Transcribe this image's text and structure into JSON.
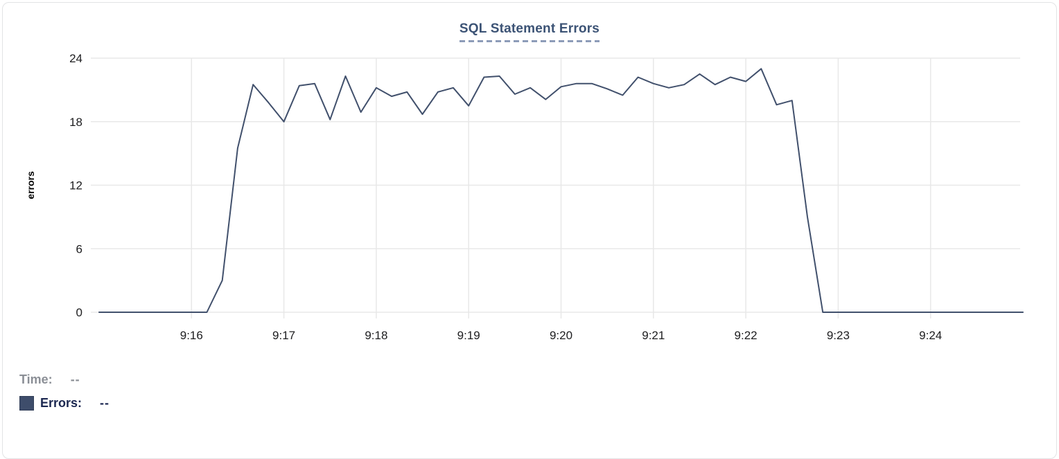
{
  "chart_data": {
    "type": "line",
    "title": "SQL Statement Errors",
    "xlabel": "",
    "ylabel": "errors",
    "ylim": [
      0,
      24
    ],
    "y_ticks": [
      0,
      6,
      12,
      18,
      24
    ],
    "x_start": "9:15:00",
    "x_end": "9:25:00",
    "x_step_seconds": 10,
    "x_tick_labels": [
      "9:16",
      "9:17",
      "9:18",
      "9:19",
      "9:20",
      "9:21",
      "9:22",
      "9:23",
      "9:24"
    ],
    "grid": true,
    "legend_position": "bottom-left",
    "series": [
      {
        "name": "Errors",
        "color": "#41506c",
        "values": [
          0,
          0,
          0,
          0,
          0,
          0,
          0,
          0,
          3,
          15.5,
          21.5,
          19.8,
          18,
          21.4,
          21.6,
          18.2,
          22.3,
          18.9,
          21.2,
          20.4,
          20.8,
          18.7,
          20.8,
          21.2,
          19.5,
          22.2,
          22.3,
          20.6,
          21.2,
          20.1,
          21.3,
          21.6,
          21.6,
          21.1,
          20.5,
          22.2,
          21.6,
          21.2,
          21.5,
          22.5,
          21.5,
          22.2,
          21.8,
          23,
          19.6,
          20,
          9,
          0,
          0,
          0,
          0,
          0,
          0,
          0,
          0,
          0,
          0,
          0,
          0,
          0,
          0
        ]
      }
    ]
  },
  "legend": {
    "time_label": "Time:",
    "time_value": "--",
    "errors_label": "Errors:",
    "errors_value": "--",
    "swatch_color": "#3e4d6b"
  },
  "colors": {
    "title": "#3c5375",
    "title_underline": "#8d9cb8",
    "line": "#41506c",
    "gridline": "#e8e8e8",
    "axis_text": "#1d1d1f",
    "card_border": "#e2e3e5"
  }
}
